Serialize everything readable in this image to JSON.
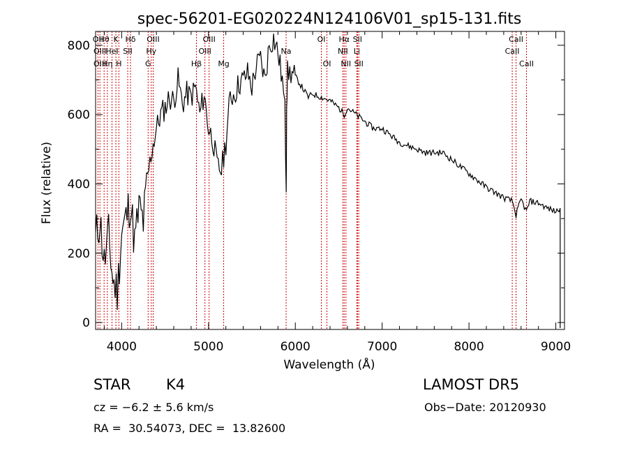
{
  "chart_data": {
    "type": "line",
    "title": "spec-56201-EG020224N124106V01_sp15-131.fits",
    "xlabel": "Wavelength (Å)",
    "ylabel": "Flux (relative)",
    "xlim": [
      3700,
      9100
    ],
    "ylim": [
      -20,
      840
    ],
    "xticks": [
      4000,
      5000,
      6000,
      7000,
      8000,
      9000
    ],
    "xtick_labels": [
      "4000",
      "5000",
      "6000",
      "7000",
      "8000",
      "9000"
    ],
    "yticks": [
      0,
      200,
      400,
      600,
      800
    ],
    "ytick_labels": [
      "0",
      "200",
      "400",
      "600",
      "800"
    ],
    "grid": false,
    "series": [
      {
        "x": [
          3700,
          3750,
          3800,
          3850,
          3900,
          3950,
          4000,
          4050,
          4100,
          4150,
          4200,
          4250,
          4300,
          4350,
          4400,
          4450,
          4500,
          4550,
          4600,
          4650,
          4700,
          4750,
          4800,
          4850,
          4900,
          4950,
          5000,
          5050,
          5100,
          5150,
          5200,
          5250,
          5300,
          5350,
          5400,
          5450,
          5500,
          5550,
          5600,
          5650,
          5700,
          5750,
          5800,
          5850,
          5880,
          5895,
          5900,
          5910,
          5950,
          6000,
          6050,
          6100,
          6150,
          6200,
          6300,
          6400,
          6500,
          6563,
          6600,
          6700,
          6800,
          6900,
          7000,
          7100,
          7200,
          7300,
          7400,
          7500,
          7600,
          7700,
          7800,
          7900,
          8000,
          8100,
          8200,
          8300,
          8400,
          8500,
          8542,
          8600,
          8662,
          8700,
          8800,
          8900,
          9000,
          9050
        ],
        "y": [
          240,
          300,
          170,
          250,
          120,
          90,
          260,
          300,
          350,
          230,
          330,
          290,
          420,
          500,
          560,
          600,
          620,
          650,
          640,
          700,
          630,
          660,
          650,
          680,
          600,
          660,
          560,
          530,
          450,
          440,
          520,
          650,
          660,
          690,
          700,
          720,
          680,
          740,
          760,
          700,
          800,
          820,
          780,
          700,
          610,
          400,
          640,
          720,
          720,
          710,
          690,
          670,
          650,
          660,
          650,
          640,
          620,
          600,
          620,
          600,
          580,
          560,
          560,
          540,
          520,
          510,
          500,
          490,
          490,
          490,
          470,
          450,
          430,
          410,
          390,
          375,
          360,
          350,
          310,
          355,
          320,
          350,
          345,
          330,
          320,
          330
        ]
      }
    ],
    "lines": [
      {
        "wl": 3727,
        "top": "OII",
        "mid": "",
        "low": ""
      },
      {
        "wl": 3750,
        "top": "",
        "mid": "OIII",
        "low": "OIII"
      },
      {
        "wl": 3798,
        "top": "Hθ",
        "mid": "",
        "low": ""
      },
      {
        "wl": 3835,
        "top": "",
        "mid": "",
        "low": "Hη"
      },
      {
        "wl": 3889,
        "top": "",
        "mid": "HeI",
        "low": ""
      },
      {
        "wl": 3934,
        "top": "K",
        "mid": "",
        "low": ""
      },
      {
        "wl": 3968,
        "top": "",
        "mid": "",
        "low": "H"
      },
      {
        "wl": 4070,
        "top": "",
        "mid": "SII",
        "low": ""
      },
      {
        "wl": 4102,
        "top": "Hδ",
        "mid": "",
        "low": ""
      },
      {
        "wl": 4305,
        "top": "",
        "mid": "",
        "low": "G"
      },
      {
        "wl": 4341,
        "top": "",
        "mid": "Hγ",
        "low": ""
      },
      {
        "wl": 4363,
        "top": "OIII",
        "mid": "",
        "low": ""
      },
      {
        "wl": 4861,
        "top": "",
        "mid": "",
        "low": "Hβ"
      },
      {
        "wl": 4959,
        "top": "",
        "mid": "OIII",
        "low": ""
      },
      {
        "wl": 5007,
        "top": "OIII",
        "mid": "",
        "low": ""
      },
      {
        "wl": 5175,
        "top": "",
        "mid": "",
        "low": "Mg"
      },
      {
        "wl": 5894,
        "top": "",
        "mid": "Na",
        "low": ""
      },
      {
        "wl": 6300,
        "top": "OI",
        "mid": "",
        "low": ""
      },
      {
        "wl": 6364,
        "top": "",
        "mid": "",
        "low": "OI"
      },
      {
        "wl": 6548,
        "top": "",
        "mid": "NII",
        "low": ""
      },
      {
        "wl": 6563,
        "top": "Hα",
        "mid": "",
        "low": ""
      },
      {
        "wl": 6583,
        "top": "",
        "mid": "",
        "low": "NII"
      },
      {
        "wl": 6708,
        "top": "",
        "mid": "Li",
        "low": ""
      },
      {
        "wl": 6716,
        "top": "SII",
        "mid": "",
        "low": ""
      },
      {
        "wl": 6731,
        "top": "",
        "mid": "",
        "low": "SII"
      },
      {
        "wl": 8498,
        "top": "",
        "mid": "CaII",
        "low": ""
      },
      {
        "wl": 8542,
        "top": "CaII",
        "mid": "",
        "low": ""
      },
      {
        "wl": 8662,
        "top": "",
        "mid": "",
        "low": "CaII"
      }
    ],
    "colors": {
      "line": "#000000",
      "marker": "#cc0000",
      "background": "#ffffff"
    }
  },
  "info": {
    "class_label": "STAR",
    "subclass": "K4",
    "survey": "LAMOST DR5",
    "cz": "cz = −6.2 ± 5.6 km/s",
    "obs_date": "Obs−Date: 20120930",
    "coords": "RA =  30.54073, DEC =  13.82600"
  }
}
